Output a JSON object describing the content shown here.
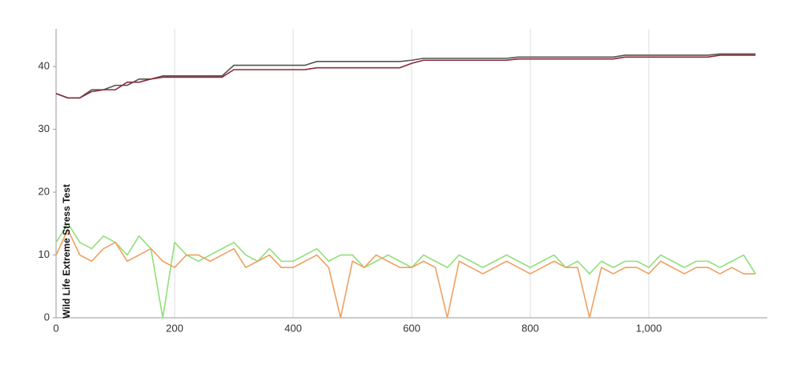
{
  "chart_data": {
    "type": "line",
    "title": "Wild Life Extreme Stress Test",
    "x": [
      0,
      20,
      40,
      60,
      80,
      100,
      120,
      140,
      160,
      180,
      200,
      220,
      240,
      260,
      280,
      300,
      320,
      340,
      360,
      380,
      400,
      420,
      440,
      460,
      480,
      500,
      520,
      540,
      560,
      580,
      600,
      620,
      640,
      660,
      680,
      700,
      720,
      740,
      760,
      780,
      800,
      820,
      840,
      860,
      880,
      900,
      920,
      940,
      960,
      980,
      1000,
      1020,
      1040,
      1060,
      1080,
      1100,
      1120,
      1140,
      1160,
      1180
    ],
    "series": [
      {
        "color": "#555555",
        "values": [
          35.7,
          35,
          35,
          36.3,
          36.3,
          37,
          37,
          38,
          38,
          38.5,
          38.5,
          38.5,
          38.5,
          38.5,
          38.5,
          40.2,
          40.2,
          40.2,
          40.2,
          40.2,
          40.2,
          40.2,
          40.8,
          40.8,
          40.8,
          40.8,
          40.8,
          40.8,
          40.8,
          40.8,
          41,
          41.3,
          41.3,
          41.3,
          41.3,
          41.3,
          41.3,
          41.3,
          41.3,
          41.5,
          41.5,
          41.5,
          41.5,
          41.5,
          41.5,
          41.5,
          41.5,
          41.5,
          41.8,
          41.8,
          41.8,
          41.8,
          41.8,
          41.8,
          41.8,
          41.8,
          42,
          42,
          42,
          42
        ]
      },
      {
        "color": "#8b2c3a",
        "values": [
          35.7,
          35,
          35,
          36,
          36.3,
          36.3,
          37.5,
          37.5,
          38,
          38.3,
          38.3,
          38.3,
          38.3,
          38.3,
          38.3,
          39.5,
          39.5,
          39.5,
          39.5,
          39.5,
          39.5,
          39.5,
          39.8,
          39.8,
          39.8,
          39.8,
          39.8,
          39.8,
          39.8,
          39.8,
          40.5,
          41,
          41,
          41,
          41,
          41,
          41,
          41,
          41,
          41.2,
          41.2,
          41.2,
          41.2,
          41.2,
          41.2,
          41.2,
          41.2,
          41.2,
          41.5,
          41.5,
          41.5,
          41.5,
          41.5,
          41.5,
          41.5,
          41.5,
          41.8,
          41.8,
          41.8,
          41.8
        ]
      },
      {
        "color": "#90e07a",
        "values": [
          12,
          15,
          12,
          11,
          13,
          12,
          10,
          13,
          11,
          0,
          12,
          10,
          9,
          10,
          11,
          12,
          10,
          9,
          11,
          9,
          9,
          10,
          11,
          9,
          10,
          10,
          8,
          9,
          10,
          9,
          8,
          10,
          9,
          8,
          10,
          9,
          8,
          9,
          10,
          9,
          8,
          9,
          10,
          8,
          9,
          7,
          9,
          8,
          9,
          9,
          8,
          10,
          9,
          8,
          9,
          9,
          8,
          9,
          10,
          7
        ]
      },
      {
        "color": "#f0a060",
        "values": [
          10,
          14,
          10,
          9,
          11,
          12,
          9,
          10,
          11,
          9,
          8,
          10,
          10,
          9,
          10,
          11,
          8,
          9,
          10,
          8,
          8,
          9,
          10,
          8,
          0,
          9,
          8,
          10,
          9,
          8,
          8,
          9,
          8,
          0,
          9,
          8,
          7,
          8,
          9,
          8,
          7,
          8,
          9,
          8,
          8,
          0,
          8,
          7,
          8,
          8,
          7,
          9,
          8,
          7,
          8,
          8,
          7,
          8,
          7,
          7
        ]
      }
    ],
    "xlim": [
      0,
      1200
    ],
    "ylim": [
      0,
      46
    ],
    "xticks": [
      0,
      200,
      400,
      600,
      800,
      {
        "value": 1000,
        "label": "1,000"
      }
    ],
    "yticks": [
      0,
      10,
      20,
      30,
      40
    ],
    "grid": true
  }
}
